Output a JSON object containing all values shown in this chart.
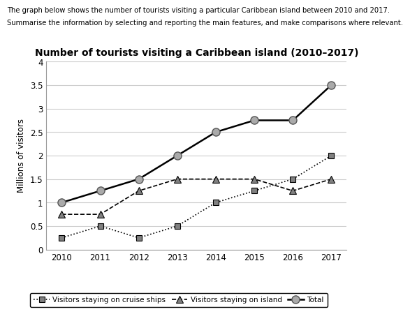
{
  "title": "Number of tourists visiting a Caribbean island (2010–2017)",
  "header1": "The graph below shows the number of tourists visiting a particular Caribbean island between 2010 and 2017.",
  "header2": "Summarise the information by selecting and reporting the main features, and make comparisons where relevant.",
  "ylabel": "Millions of visitors",
  "years": [
    2010,
    2011,
    2012,
    2013,
    2014,
    2015,
    2016,
    2017
  ],
  "cruise_ships": [
    0.25,
    0.5,
    0.25,
    0.5,
    1.0,
    1.25,
    1.5,
    2.0
  ],
  "on_island": [
    0.75,
    0.75,
    1.25,
    1.5,
    1.5,
    1.5,
    1.25,
    1.5
  ],
  "total": [
    1.0,
    1.25,
    1.5,
    2.0,
    2.5,
    2.75,
    2.75,
    3.5
  ],
  "ylim": [
    0,
    4
  ],
  "yticks": [
    0,
    0.5,
    1.0,
    1.5,
    2.0,
    2.5,
    3.0,
    3.5,
    4.0
  ],
  "ytick_labels": [
    "0",
    "0.5",
    "1",
    "1.5",
    "2",
    "2.5",
    "3",
    "3.5",
    "4"
  ],
  "background_color": "#ffffff",
  "grid_color": "#cccccc"
}
